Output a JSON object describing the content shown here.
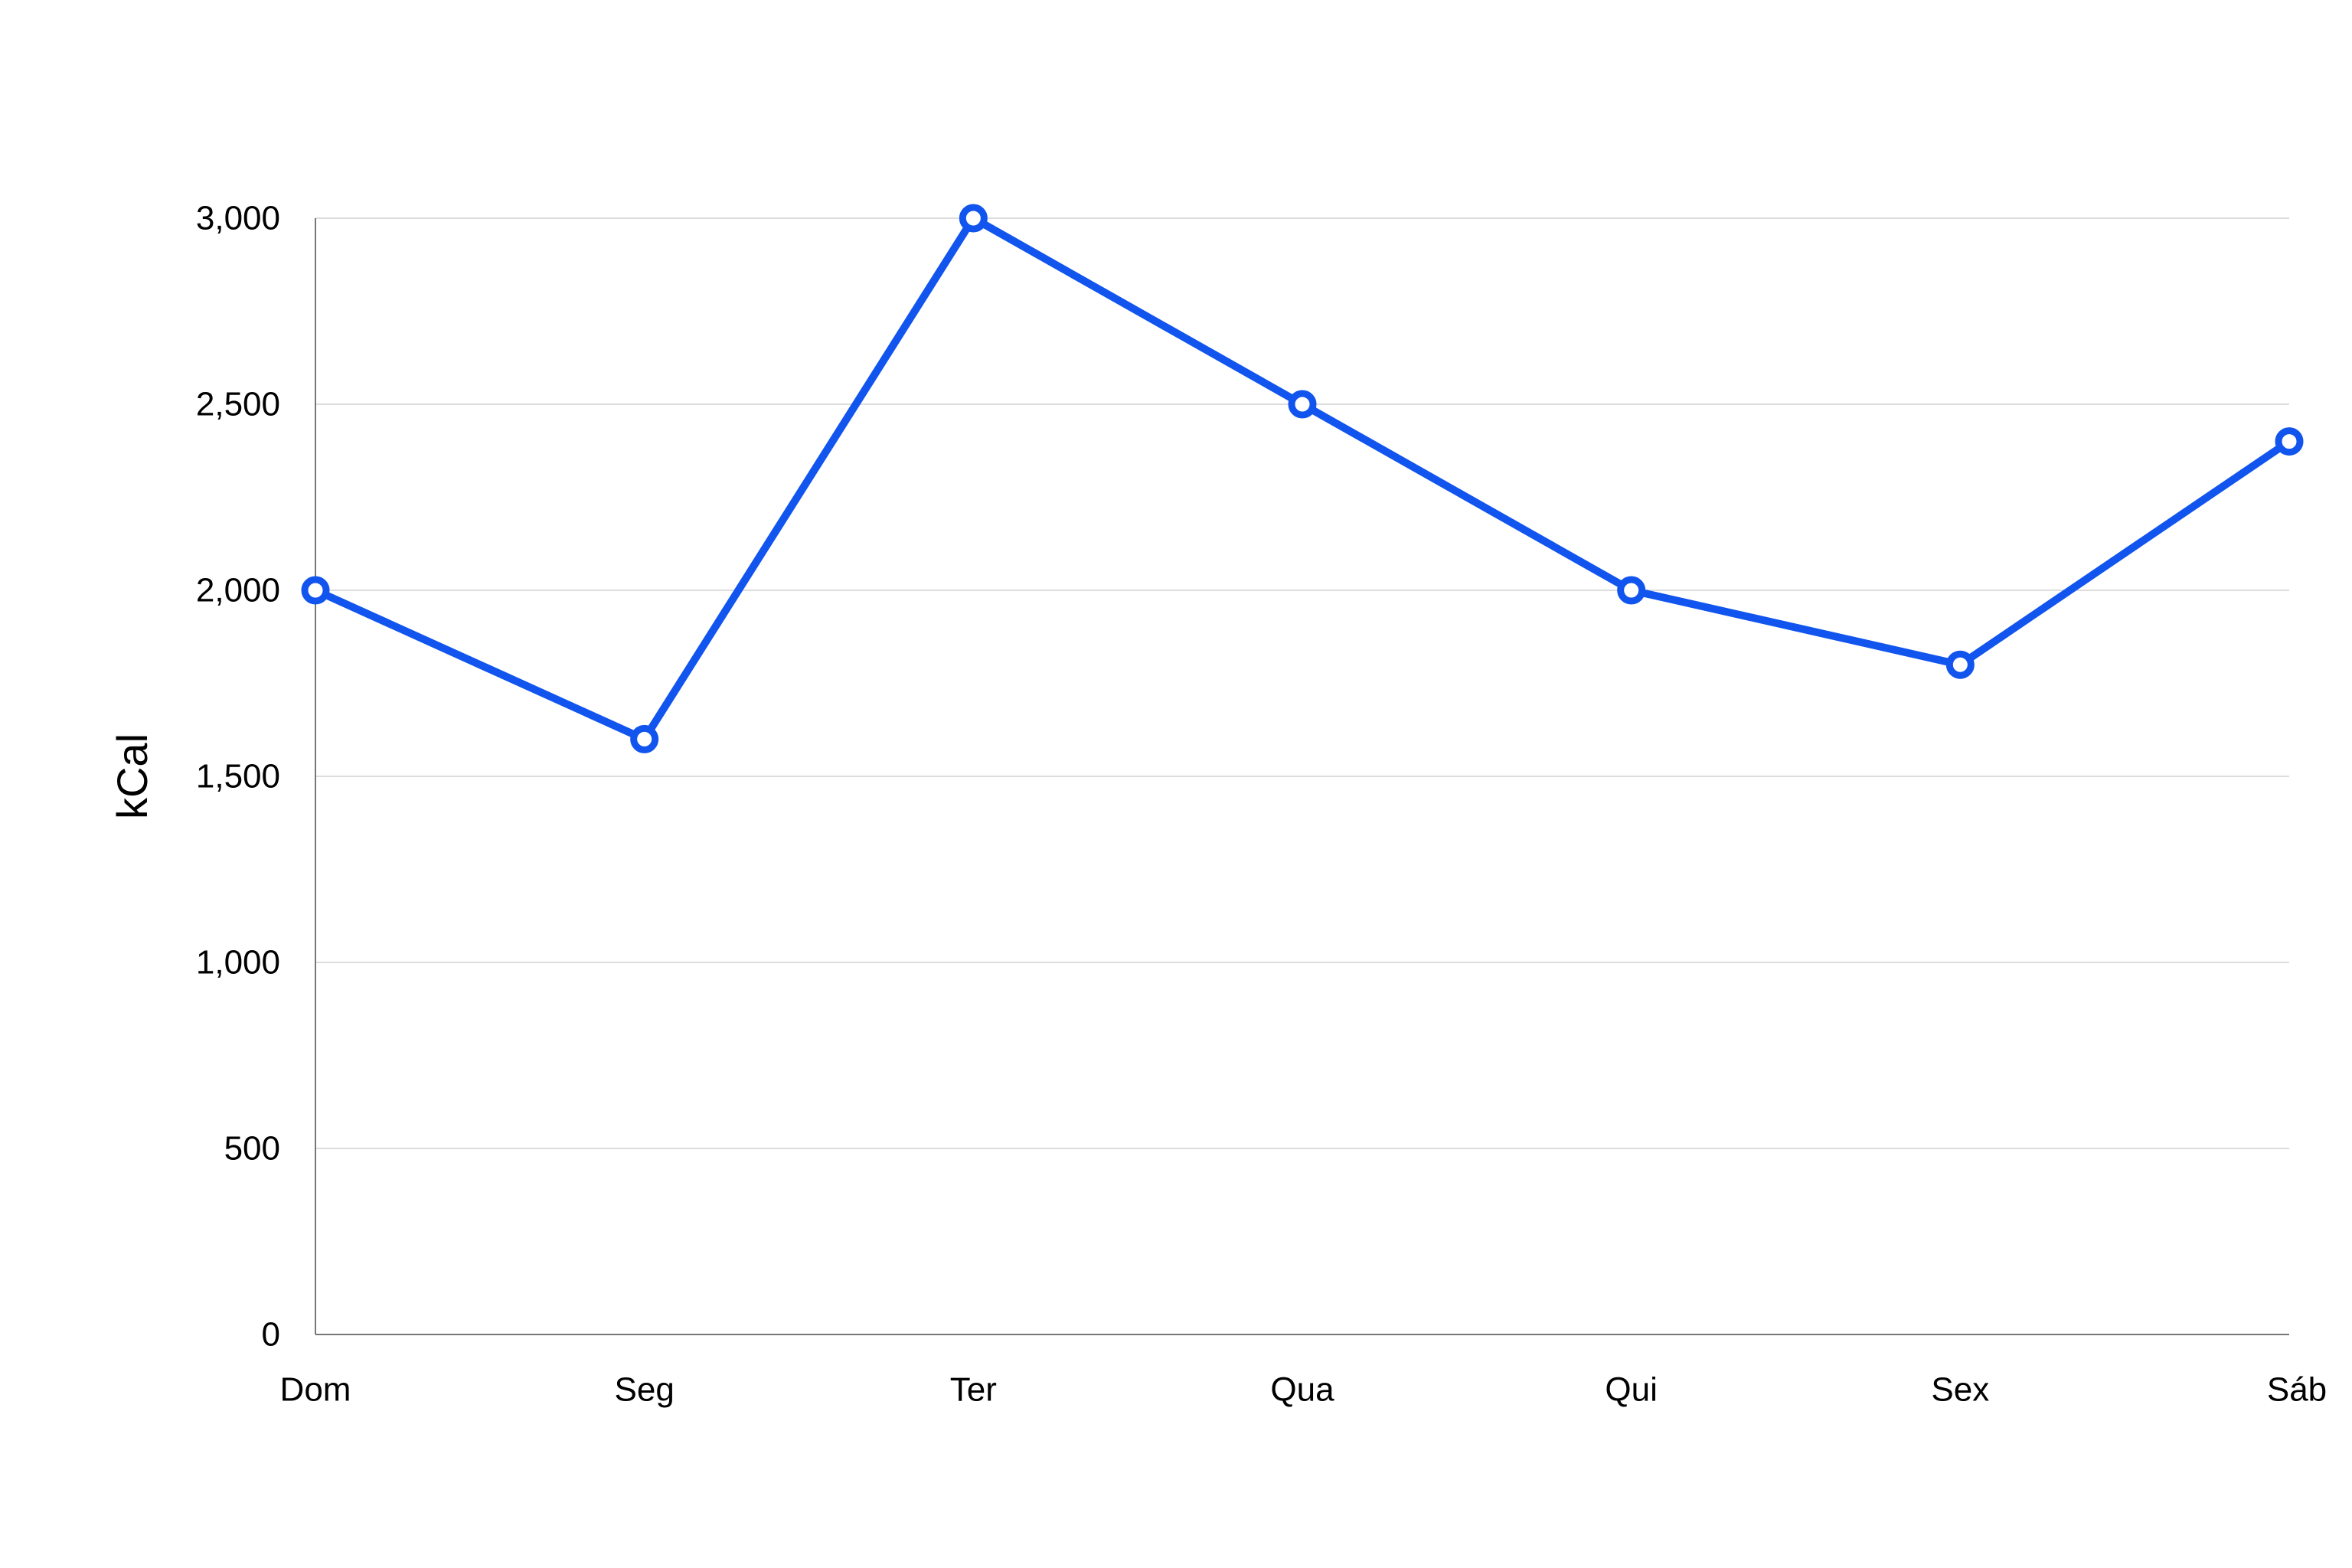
{
  "chart_data": {
    "type": "line",
    "categories": [
      "Dom",
      "Seg",
      "Ter",
      "Qua",
      "Qui",
      "Sex",
      "Sáb"
    ],
    "series": [
      {
        "values": [
          2000,
          1600,
          3000,
          2500,
          2000,
          1800,
          2400
        ]
      }
    ],
    "ylabel": "kCal",
    "xlabel": "",
    "ylim": [
      0,
      3000
    ],
    "yticks": [
      0,
      500,
      1000,
      1500,
      2000,
      2500,
      3000
    ],
    "ytick_labels": [
      "0",
      "500",
      "1,000",
      "1,500",
      "2,000",
      "2,500",
      "3,000"
    ],
    "grid": true,
    "legend": "none",
    "colors": {
      "line": "#1155ee",
      "grid": "#dddddd",
      "axis": "#777777"
    }
  }
}
